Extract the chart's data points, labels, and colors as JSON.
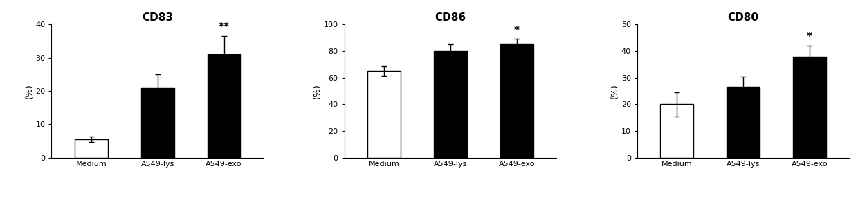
{
  "panels": [
    {
      "title": "CD83",
      "ylim": [
        0,
        40
      ],
      "yticks": [
        0,
        10,
        20,
        30,
        40
      ],
      "categories": [
        "Medium",
        "A549-lys",
        "A549-exo"
      ],
      "values": [
        5.5,
        21.0,
        31.0
      ],
      "errors": [
        0.8,
        4.0,
        5.5
      ],
      "colors": [
        "#ffffff",
        "#000000",
        "#000000"
      ],
      "edgecolors": [
        "#000000",
        "#000000",
        "#000000"
      ],
      "significance": [
        null,
        null,
        "**"
      ],
      "ylabel": "(%)"
    },
    {
      "title": "CD86",
      "ylim": [
        0,
        100
      ],
      "yticks": [
        0,
        20,
        40,
        60,
        80,
        100
      ],
      "categories": [
        "Medium",
        "A549-lys",
        "A549-exo"
      ],
      "values": [
        65.0,
        80.0,
        85.0
      ],
      "errors": [
        3.5,
        5.0,
        4.0
      ],
      "colors": [
        "#ffffff",
        "#000000",
        "#000000"
      ],
      "edgecolors": [
        "#000000",
        "#000000",
        "#000000"
      ],
      "significance": [
        null,
        null,
        "*"
      ],
      "ylabel": "(%)"
    },
    {
      "title": "CD80",
      "ylim": [
        0,
        50
      ],
      "yticks": [
        0,
        10,
        20,
        30,
        40,
        50
      ],
      "categories": [
        "Medium",
        "A549-lys",
        "A549-exo"
      ],
      "values": [
        20.0,
        26.5,
        38.0
      ],
      "errors": [
        4.5,
        4.0,
        4.0
      ],
      "colors": [
        "#ffffff",
        "#000000",
        "#000000"
      ],
      "edgecolors": [
        "#000000",
        "#000000",
        "#000000"
      ],
      "significance": [
        null,
        null,
        "*"
      ],
      "ylabel": "(%)"
    }
  ],
  "bar_width": 0.5,
  "title_fontsize": 11,
  "tick_fontsize": 8,
  "label_fontsize": 9,
  "sig_fontsize": 11,
  "xlabel_fontsize": 8,
  "background_color": "#ffffff",
  "figsize": [
    12.4,
    2.93
  ],
  "dpi": 100
}
